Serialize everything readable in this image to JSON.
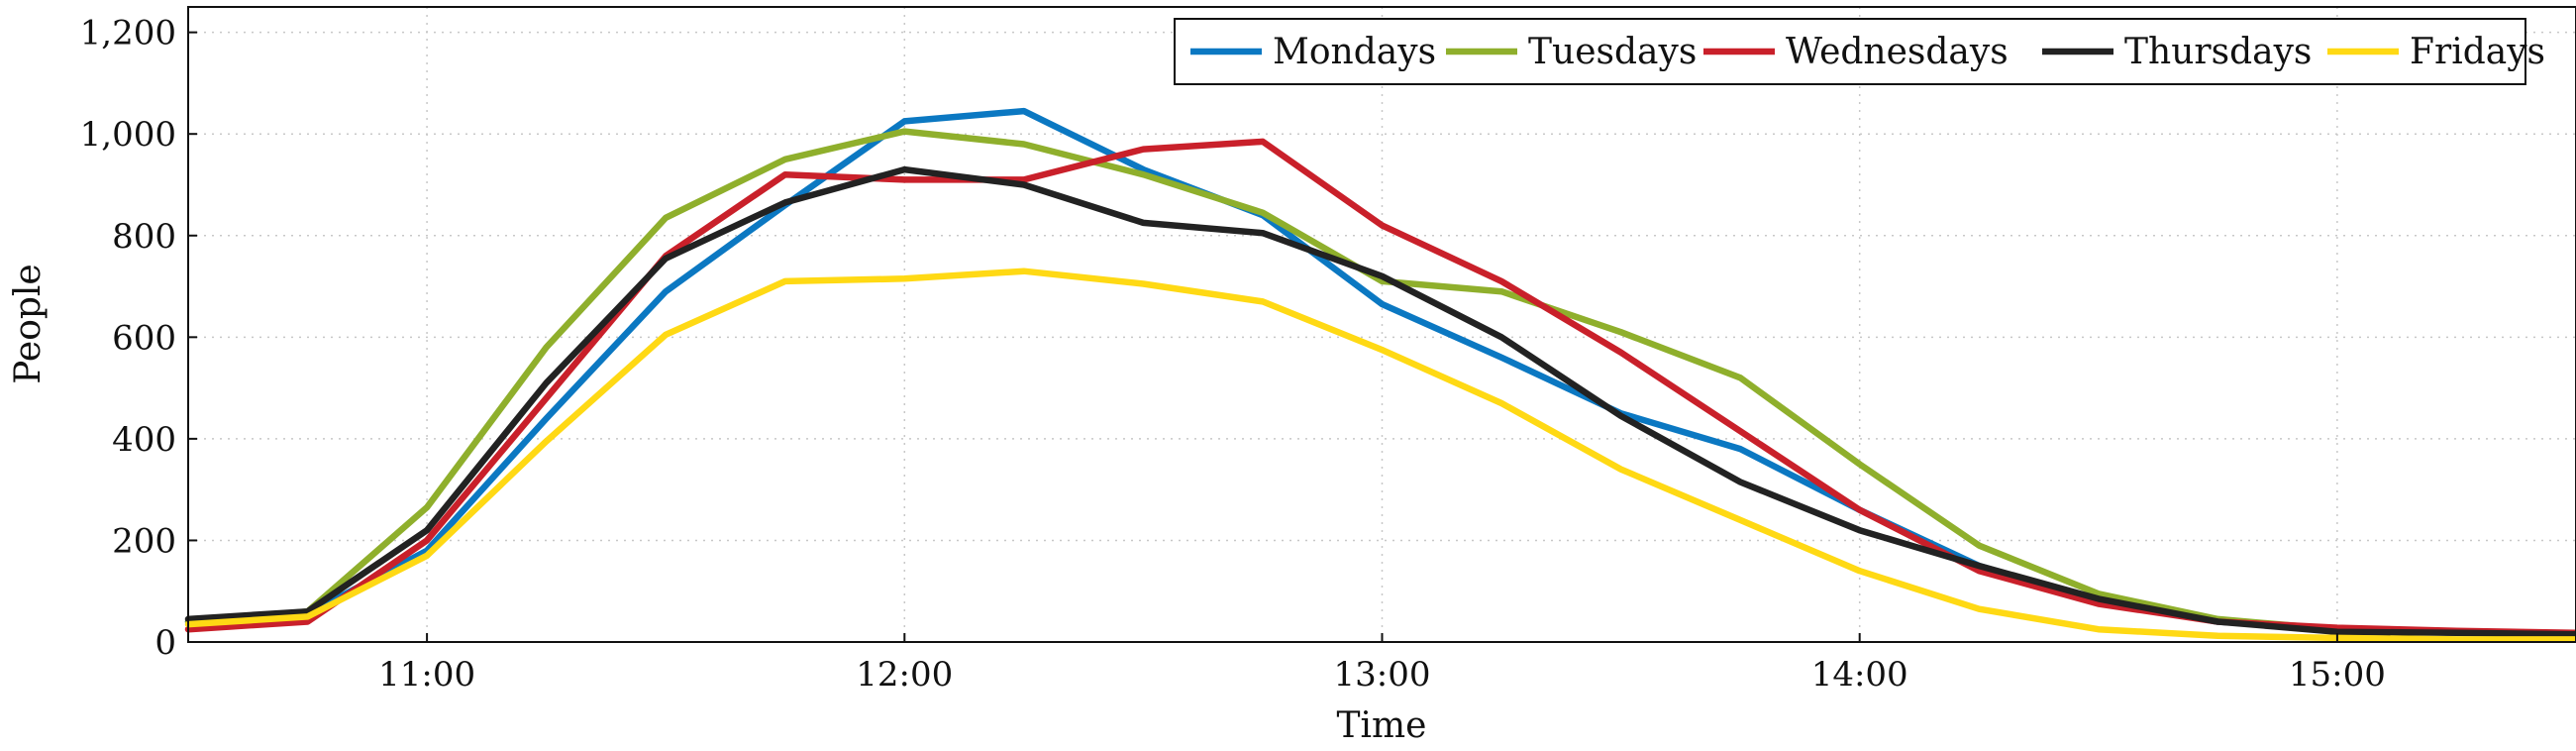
{
  "chart_data": {
    "type": "line",
    "title": "",
    "xlabel": "Time",
    "ylabel": "People",
    "xlim": [
      10.5,
      15.5
    ],
    "ylim": [
      0,
      1250
    ],
    "grid": true,
    "legend_position": "top-right",
    "x": [
      10.5,
      10.75,
      11.0,
      11.25,
      11.5,
      11.75,
      12.0,
      12.25,
      12.5,
      12.75,
      13.0,
      13.25,
      13.5,
      13.75,
      14.0,
      14.25,
      14.5,
      14.75,
      15.0,
      15.25,
      15.5
    ],
    "x_ticks": [
      {
        "value": 11,
        "label": "11:00"
      },
      {
        "value": 12,
        "label": "12:00"
      },
      {
        "value": 13,
        "label": "13:00"
      },
      {
        "value": 14,
        "label": "14:00"
      },
      {
        "value": 15,
        "label": "15:00"
      }
    ],
    "y_ticks": [
      {
        "value": 0,
        "label": "0"
      },
      {
        "value": 200,
        "label": "200"
      },
      {
        "value": 400,
        "label": "400"
      },
      {
        "value": 600,
        "label": "600"
      },
      {
        "value": 800,
        "label": "800"
      },
      {
        "value": 1000,
        "label": "1,000"
      },
      {
        "value": 1200,
        "label": "1,200"
      }
    ],
    "series": [
      {
        "name": "Mondays",
        "color": "#0b78c2",
        "values": [
          40,
          55,
          180,
          440,
          690,
          860,
          1025,
          1045,
          930,
          840,
          665,
          560,
          450,
          380,
          260,
          150,
          80,
          40,
          25,
          20,
          15
        ]
      },
      {
        "name": "Tuesdays",
        "color": "#8faf2c",
        "values": [
          40,
          60,
          265,
          580,
          835,
          950,
          1005,
          980,
          920,
          845,
          710,
          690,
          610,
          520,
          350,
          190,
          95,
          45,
          25,
          20,
          15
        ]
      },
      {
        "name": "Wednesdays",
        "color": "#c9202a",
        "values": [
          25,
          40,
          200,
          480,
          760,
          920,
          910,
          910,
          970,
          985,
          820,
          710,
          570,
          415,
          260,
          140,
          75,
          40,
          28,
          22,
          18
        ]
      },
      {
        "name": "Thursdays",
        "color": "#222222",
        "values": [
          45,
          60,
          220,
          510,
          755,
          865,
          930,
          900,
          825,
          805,
          720,
          600,
          445,
          315,
          220,
          150,
          85,
          40,
          20,
          18,
          15
        ]
      },
      {
        "name": "Fridays",
        "color": "#ffd914",
        "values": [
          35,
          50,
          170,
          395,
          605,
          710,
          715,
          730,
          705,
          670,
          575,
          470,
          340,
          240,
          140,
          65,
          25,
          12,
          8,
          5,
          5
        ]
      }
    ]
  }
}
